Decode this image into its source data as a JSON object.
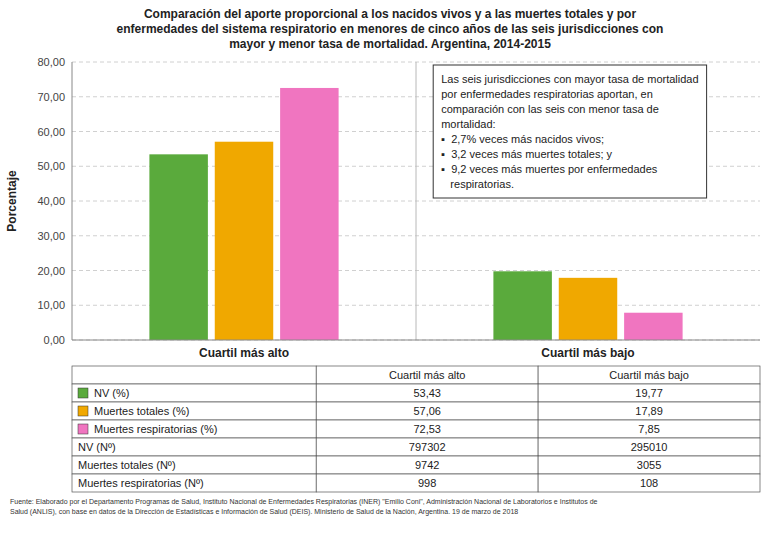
{
  "chart_data": {
    "type": "bar",
    "title": "Comparación del aporte proporcional a los nacidos vivos y a las muertes totales y por\nenfermedades del sistema respiratorio en menores de cinco años de las seis jurisdicciones con\nmayor y menor tasa de mortalidad. Argentina, 2014-2015",
    "categories": [
      "Cuartil más alto",
      "Cuartil más bajo"
    ],
    "series": [
      {
        "name": "NV (%)",
        "color": "#5aaa3c",
        "values": [
          53.43,
          19.77
        ]
      },
      {
        "name": "Muertes totales (%)",
        "color": "#f0a800",
        "values": [
          57.06,
          17.89
        ]
      },
      {
        "name": "Muertes respiratorias (%)",
        "color": "#f075c0",
        "values": [
          72.53,
          7.85
        ]
      }
    ],
    "ylabel": "Porcentaje",
    "ylim": [
      0,
      80
    ],
    "yticks": [
      {
        "value": 0,
        "label": "0,00"
      },
      {
        "value": 10,
        "label": "10,00"
      },
      {
        "value": 20,
        "label": "20,00"
      },
      {
        "value": 30,
        "label": "30,00"
      },
      {
        "value": 40,
        "label": "40,00"
      },
      {
        "value": 50,
        "label": "50,00"
      },
      {
        "value": 60,
        "label": "60,00"
      },
      {
        "value": 70,
        "label": "70,00"
      },
      {
        "value": 80,
        "label": "80,00"
      }
    ],
    "grid": true,
    "annotation": "Las seis jurisdicciones con mayor tasa de mortalidad\npor enfermedades respiratorias aportan, en\ncomparación con las seis con menor tasa de\nmortalidad:\n▪  2,7% veces más nacidos vivos;\n▪  3,2 veces más muertes totales; y\n▪  9,2 veces más muertes por enfermedades\n   respiratorias.",
    "table": {
      "columns": [
        "Cuartil más alto",
        "Cuartil más bajo"
      ],
      "rows": [
        {
          "label": "NV (%)",
          "color": "#5aaa3c",
          "values": [
            53.43,
            19.77
          ],
          "value_labels": [
            "53,43",
            "19,77"
          ]
        },
        {
          "label": "Muertes totales (%)",
          "color": "#f0a800",
          "values": [
            57.06,
            17.89
          ],
          "value_labels": [
            "57,06",
            "17,89"
          ]
        },
        {
          "label": "Muertes respiratorias (%)",
          "color": "#f075c0",
          "values": [
            72.53,
            7.85
          ],
          "value_labels": [
            "72,53",
            "7,85"
          ]
        },
        {
          "label": "NV (Nº)",
          "values": [
            797302,
            295010
          ]
        },
        {
          "label": "Muertes totales (Nº)",
          "values": [
            9742,
            3055
          ]
        },
        {
          "label": "Muertes respiratorias (Nº)",
          "values": [
            998,
            108
          ]
        }
      ]
    },
    "source": "Fuente: Elaborado por el Departamento Programas de Salud, Instituto Nacional de Enfermedades Respiratorias (INER) \"Emilio Coni\", Administración Nacional de Laboratorios e Institutos de\nSalud (ANLIS), con base en datos de la Dirección de Estadísticas e Información de Salud (DEIS). Ministerio de Salud de la Nación, Argentina. 19 de marzo de 2018"
  }
}
